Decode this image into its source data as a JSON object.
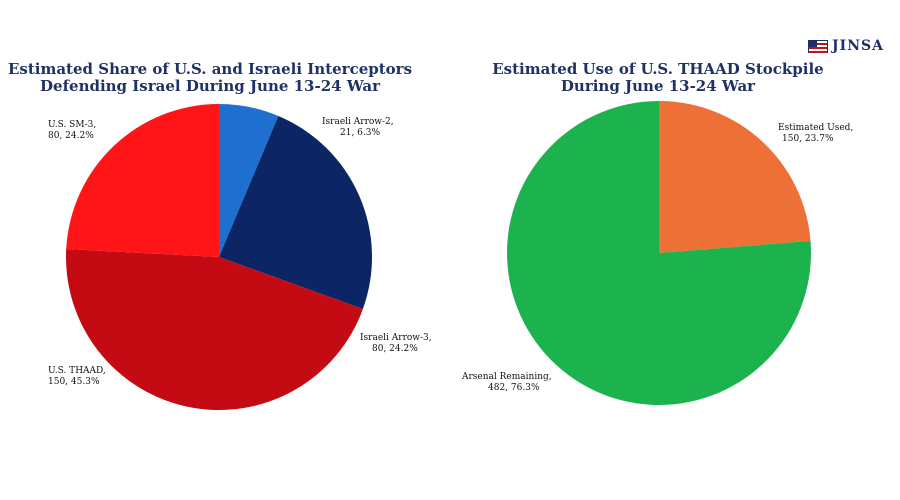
{
  "logo": {
    "text": "JINSA",
    "icon": "us-israel-flag-icon"
  },
  "chart_data": [
    {
      "type": "pie",
      "title": [
        "Estimated Share of U.S. and Israeli Interceptors",
        "Defending Israel During June 13-24 War"
      ],
      "slices": [
        {
          "name": "Israeli Arrow-2",
          "value": 21,
          "percent": "6.3%",
          "color": "#1f6fd0"
        },
        {
          "name": "Israeli Arrow-3",
          "value": 80,
          "percent": "24.2%",
          "color": "#0b2565"
        },
        {
          "name": "U.S. THAAD",
          "value": 150,
          "percent": "45.3%",
          "color": "#c40a13"
        },
        {
          "name": "U.S. SM-3",
          "value": 80,
          "percent": "24.2%",
          "color": "#ff1418"
        }
      ],
      "labels": [
        {
          "line1": "Israeli Arrow-2,",
          "line2": "21, 6.3%"
        },
        {
          "line1": "Israeli Arrow-3,",
          "line2": "80, 24.2%"
        },
        {
          "line1": "U.S. THAAD,",
          "line2": "150, 45.3%"
        },
        {
          "line1": "U.S. SM-3,",
          "line2": "80, 24.2%"
        }
      ]
    },
    {
      "type": "pie",
      "title": [
        "Estimated Use of U.S. THAAD Stockpile",
        "During June 13-24 War"
      ],
      "slices": [
        {
          "name": "Estimated Used",
          "value": 150,
          "percent": "23.7%",
          "color": "#ed7136"
        },
        {
          "name": "Arsenal Remaining",
          "value": 482,
          "percent": "76.3%",
          "color": "#1cb34e"
        }
      ],
      "labels": [
        {
          "line1": "Estimated Used,",
          "line2": "150, 23.7%"
        },
        {
          "line1": "Arsenal Remaining,",
          "line2": "482, 76.3%"
        }
      ]
    }
  ]
}
